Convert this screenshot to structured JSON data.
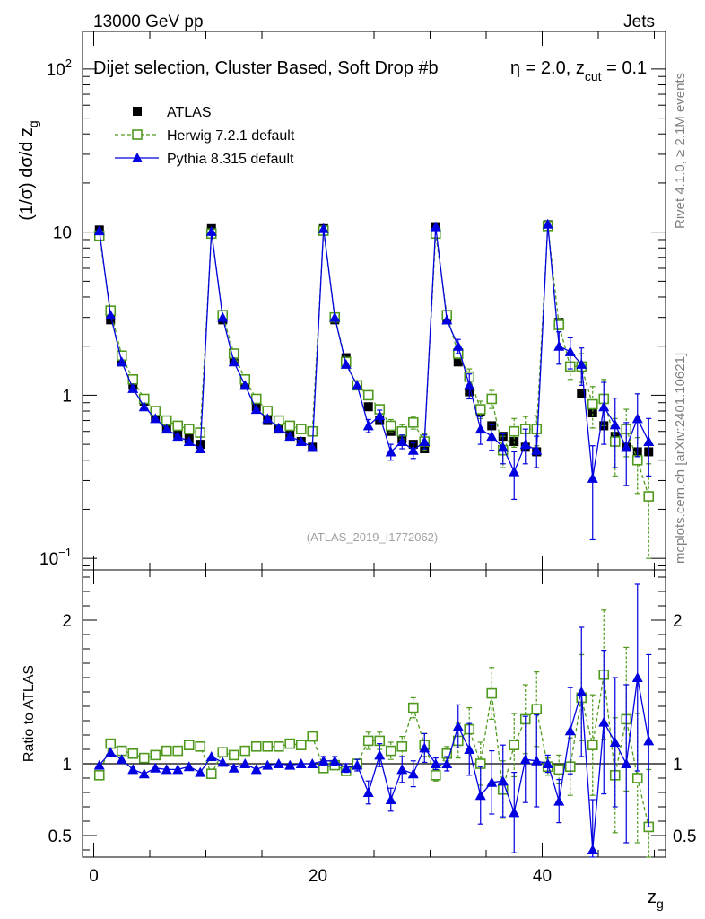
{
  "header": {
    "left": "13000 GeV pp",
    "right": "Jets"
  },
  "side_labels": {
    "rivet": "Rivet 4.1.0, ≥ 2.1M events",
    "mcplots": "mcplots.cern.ch [arXiv:2401.10621]"
  },
  "analysis_id": "(ATLAS_2019_I1772062)",
  "colors": {
    "atlas": "#000000",
    "herwig": "#4f9a1e",
    "pythia": "#0000e0"
  },
  "chart_data": [
    {
      "type": "scatter",
      "title_main": "Dijet selection, Cluster Based, Soft Drop #b",
      "title_eta": "η = 2.0, z",
      "title_sub": "cut",
      "title_tail": " = 0.1",
      "ylabel_main": "(1/σ) dσ/d z",
      "ylabel_sub": "g",
      "yscale": "log",
      "ylim": [
        0.085,
        170
      ],
      "xlim": [
        -1,
        51
      ],
      "yticks": [
        {
          "value": 100,
          "base": "10",
          "exp": "2"
        },
        {
          "value": 10,
          "base": "10",
          "exp": ""
        },
        {
          "value": 1,
          "base": "1",
          "exp": ""
        },
        {
          "value": 0.1,
          "base": "10",
          "exp": "−1"
        }
      ],
      "legend_position": "top-left",
      "x": [
        0.5,
        1.5,
        2.5,
        3.5,
        4.5,
        5.5,
        6.5,
        7.5,
        8.5,
        9.5,
        10.5,
        11.5,
        12.5,
        13.5,
        14.5,
        15.5,
        16.5,
        17.5,
        18.5,
        19.5,
        20.5,
        21.5,
        22.5,
        23.5,
        24.5,
        25.5,
        26.5,
        27.5,
        28.5,
        29.5,
        30.5,
        31.5,
        32.5,
        33.5,
        34.5,
        35.5,
        36.5,
        37.5,
        38.5,
        39.5,
        40.5,
        41.5,
        42.5,
        43.5,
        44.5,
        45.5,
        46.5,
        47.5,
        48.5,
        49.5
      ],
      "series": [
        {
          "name": "ATLAS",
          "marker": "square-filled",
          "values": [
            10.3,
            2.9,
            1.6,
            1.15,
            0.92,
            0.74,
            0.64,
            0.58,
            0.54,
            0.5,
            10.5,
            2.9,
            1.65,
            1.15,
            0.85,
            0.7,
            0.62,
            0.57,
            0.52,
            0.48,
            10.5,
            2.9,
            1.7,
            1.15,
            0.85,
            0.7,
            0.6,
            0.54,
            0.5,
            0.47,
            10.8,
            2.9,
            1.6,
            1.05,
            0.8,
            0.65,
            0.56,
            0.52,
            0.48,
            0.45,
            11.1,
            2.8,
            1.5,
            1.03,
            0.78,
            0.65,
            0.56,
            0.48,
            0.45,
            0.45
          ],
          "err": [
            0,
            0,
            0,
            0,
            0,
            0,
            0,
            0,
            0,
            0,
            0,
            0,
            0,
            0,
            0,
            0,
            0,
            0,
            0,
            0,
            0,
            0,
            0,
            0,
            0,
            0,
            0,
            0,
            0,
            0,
            0,
            0,
            0,
            0,
            0,
            0,
            0,
            0,
            0,
            0,
            0,
            0,
            0,
            0,
            0,
            0,
            0,
            0,
            0,
            0
          ]
        },
        {
          "name": "Herwig 7.2.1 default",
          "marker": "square-open",
          "line": "dashed",
          "values": [
            9.5,
            3.3,
            1.75,
            1.25,
            0.95,
            0.8,
            0.7,
            0.65,
            0.62,
            0.59,
            9.8,
            3.1,
            1.8,
            1.25,
            0.95,
            0.8,
            0.7,
            0.65,
            0.62,
            0.6,
            10.2,
            3.0,
            1.6,
            1.15,
            1.0,
            0.82,
            0.65,
            0.6,
            0.68,
            0.52,
            9.8,
            3.1,
            1.8,
            1.3,
            0.82,
            0.95,
            0.46,
            0.6,
            0.62,
            0.62,
            10.9,
            2.7,
            1.5,
            1.5,
            0.88,
            0.95,
            0.52,
            0.62,
            0.4,
            0.24
          ],
          "err": [
            0,
            0,
            0,
            0,
            0,
            0,
            0,
            0,
            0,
            0,
            0,
            0,
            0,
            0,
            0,
            0,
            0,
            0,
            0,
            0,
            0,
            0,
            0,
            0,
            0.05,
            0.05,
            0.06,
            0.06,
            0.06,
            0.06,
            0,
            0,
            0.12,
            0.15,
            0.1,
            0.12,
            0.1,
            0.12,
            0.12,
            0.13,
            0,
            0.25,
            0.25,
            0.3,
            0.25,
            0.3,
            0.2,
            0.2,
            0.15,
            0.14
          ]
        },
        {
          "name": "Pythia 8.315 default",
          "marker": "triangle-filled",
          "line": "solid",
          "values": [
            10.2,
            3.1,
            1.6,
            1.1,
            0.85,
            0.72,
            0.62,
            0.56,
            0.52,
            0.47,
            10.1,
            3.0,
            1.6,
            1.15,
            0.82,
            0.72,
            0.63,
            0.56,
            0.52,
            0.48,
            10.5,
            3.0,
            1.55,
            1.15,
            0.65,
            0.75,
            0.45,
            0.52,
            0.46,
            0.52,
            10.8,
            2.9,
            2.0,
            1.15,
            0.62,
            0.56,
            0.48,
            0.34,
            0.5,
            0.46,
            11.2,
            2.0,
            1.85,
            1.55,
            0.31,
            0.85,
            0.66,
            0.48,
            0.72,
            0.52
          ],
          "err": [
            0,
            0,
            0,
            0,
            0,
            0,
            0,
            0,
            0,
            0,
            0,
            0,
            0,
            0,
            0,
            0,
            0,
            0,
            0,
            0,
            0,
            0,
            0,
            0,
            0.06,
            0.06,
            0.05,
            0.05,
            0.05,
            0.05,
            0,
            0,
            0.2,
            0.2,
            0.12,
            0.1,
            0.1,
            0.11,
            0.12,
            0.1,
            0,
            0.45,
            0.4,
            0.4,
            0.18,
            0.35,
            0.3,
            0.2,
            0.3,
            0.2
          ]
        }
      ]
    },
    {
      "type": "scatter",
      "ylabel": "Ratio to ATLAS",
      "xlabel_main": "z",
      "xlabel_sub": "g",
      "ylim": [
        0.35,
        2.35
      ],
      "xlim": [
        -1,
        51
      ],
      "yticks": [
        0.5,
        1,
        2
      ],
      "ytick_labels": [
        "0.5",
        "1",
        "2"
      ],
      "xticks": [
        0,
        20,
        40
      ],
      "xtick_labels": [
        "0",
        "20",
        "40"
      ],
      "reference_line": 1,
      "x": [
        0.5,
        1.5,
        2.5,
        3.5,
        4.5,
        5.5,
        6.5,
        7.5,
        8.5,
        9.5,
        10.5,
        11.5,
        12.5,
        13.5,
        14.5,
        15.5,
        16.5,
        17.5,
        18.5,
        19.5,
        20.5,
        21.5,
        22.5,
        23.5,
        24.5,
        25.5,
        26.5,
        27.5,
        28.5,
        29.5,
        30.5,
        31.5,
        32.5,
        33.5,
        34.5,
        35.5,
        36.5,
        37.5,
        38.5,
        39.5,
        40.5,
        41.5,
        42.5,
        43.5,
        44.5,
        45.5,
        46.5,
        47.5,
        48.5,
        49.5
      ],
      "series": [
        {
          "name": "Herwig 7.2.1 default",
          "marker": "square-open",
          "line": "dashed",
          "values": [
            0.92,
            1.14,
            1.09,
            1.07,
            1.04,
            1.06,
            1.09,
            1.09,
            1.13,
            1.12,
            0.93,
            1.08,
            1.06,
            1.09,
            1.12,
            1.12,
            1.12,
            1.14,
            1.13,
            1.19,
            0.97,
            0.99,
            0.95,
            1.0,
            1.16,
            1.16,
            1.09,
            1.12,
            1.39,
            1.13,
            0.92,
            1.07,
            1.16,
            1.24,
            1.0,
            1.49,
            0.82,
            1.13,
            1.31,
            1.38,
            0.98,
            0.96,
            0.98,
            1.46,
            1.13,
            1.62,
            0.92,
            1.31,
            0.9,
            0.56
          ],
          "err": [
            0,
            0,
            0,
            0,
            0,
            0,
            0,
            0,
            0,
            0,
            0,
            0,
            0,
            0,
            0,
            0,
            0,
            0,
            0,
            0,
            0.02,
            0.02,
            0.03,
            0.03,
            0.06,
            0.06,
            0.06,
            0.07,
            0.07,
            0.08,
            0.04,
            0.05,
            0.12,
            0.15,
            0.15,
            0.18,
            0.2,
            0.22,
            0.24,
            0.26,
            0.06,
            0.1,
            0.2,
            0.3,
            0.35,
            0.45,
            0.4,
            0.5,
            0.45,
            0.4
          ]
        },
        {
          "name": "Pythia 8.315 default",
          "marker": "triangle-filled",
          "line": "solid",
          "values": [
            0.99,
            1.08,
            1.03,
            0.96,
            0.93,
            0.97,
            0.96,
            0.96,
            0.98,
            0.94,
            1.05,
            1.01,
            0.97,
            1.0,
            0.96,
            0.99,
            1.0,
            0.99,
            1.0,
            1.0,
            1.02,
            1.02,
            0.97,
            0.99,
            0.8,
            1.06,
            0.75,
            0.96,
            0.93,
            1.11,
            1.0,
            1.0,
            1.26,
            1.1,
            0.78,
            0.87,
            0.88,
            0.66,
            1.03,
            1.02,
            1.0,
            0.74,
            1.23,
            1.5,
            0.4,
            1.29,
            1.15,
            1.0,
            1.6,
            1.16
          ],
          "err": [
            0,
            0,
            0,
            0,
            0,
            0,
            0,
            0,
            0,
            0,
            0,
            0,
            0,
            0,
            0,
            0,
            0,
            0,
            0,
            0,
            0.03,
            0.03,
            0.03,
            0.04,
            0.08,
            0.08,
            0.08,
            0.09,
            0.09,
            0.1,
            0.04,
            0.05,
            0.15,
            0.18,
            0.2,
            0.22,
            0.25,
            0.28,
            0.3,
            0.32,
            0.06,
            0.15,
            0.3,
            0.45,
            0.35,
            0.5,
            0.45,
            0.55,
            0.65,
            0.6
          ]
        }
      ]
    }
  ]
}
